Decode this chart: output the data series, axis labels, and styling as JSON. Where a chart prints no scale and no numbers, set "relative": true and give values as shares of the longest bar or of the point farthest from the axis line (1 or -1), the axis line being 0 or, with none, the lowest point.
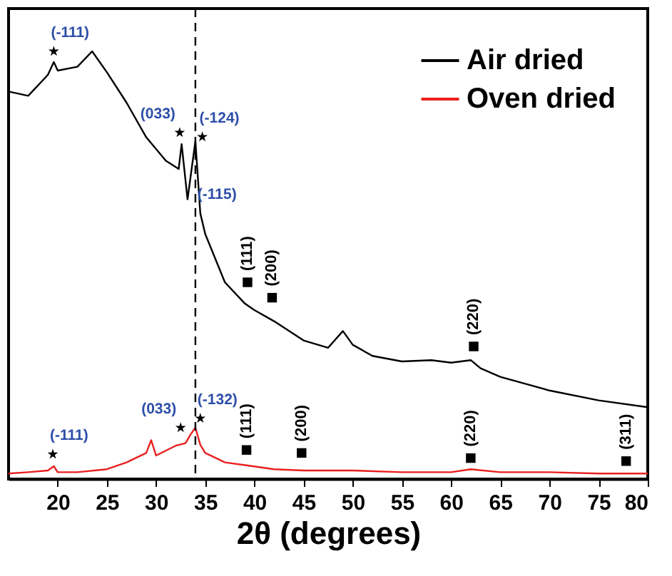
{
  "chart_data": {
    "type": "line",
    "relative": true,
    "xlabel": "2θ (degrees)",
    "xlim": [
      15,
      80
    ],
    "xticks": [
      20,
      25,
      30,
      35,
      40,
      45,
      50,
      55,
      60,
      65,
      70,
      75,
      80
    ],
    "grid": false,
    "legend": "top right",
    "marker": "none",
    "series": [
      {
        "name": "Air dried",
        "type": "line",
        "color": "#000000",
        "x": [
          15,
          17,
          19,
          19.6,
          20,
          22,
          23.5,
          25,
          27,
          29,
          31,
          32.3,
          32.6,
          33.2,
          34,
          34.5,
          35,
          37,
          39,
          40,
          42,
          45,
          47.5,
          49,
          50,
          52,
          55,
          58,
          60,
          62,
          63,
          65,
          70,
          75,
          80
        ],
        "values": [
          0.906,
          0.896,
          0.945,
          0.975,
          0.955,
          0.964,
          1.0,
          0.951,
          0.88,
          0.799,
          0.744,
          0.725,
          0.783,
          0.654,
          0.79,
          0.621,
          0.573,
          0.46,
          0.411,
          0.395,
          0.369,
          0.324,
          0.307,
          0.346,
          0.314,
          0.288,
          0.275,
          0.278,
          0.272,
          0.278,
          0.259,
          0.239,
          0.207,
          0.184,
          0.168
        ]
      },
      {
        "name": "Oven dried",
        "type": "line",
        "color": "#e8201f",
        "x": [
          15,
          17,
          19,
          19.6,
          20,
          22,
          25,
          27,
          29,
          29.5,
          30,
          32,
          33,
          33.5,
          34,
          34.5,
          35,
          37,
          39.2,
          42,
          45,
          50,
          55,
          60,
          62,
          65,
          70,
          75,
          80
        ],
        "values": [
          0.013,
          0.016,
          0.02,
          0.03,
          0.016,
          0.016,
          0.023,
          0.039,
          0.061,
          0.091,
          0.055,
          0.078,
          0.084,
          0.104,
          0.12,
          0.08,
          0.061,
          0.039,
          0.032,
          0.023,
          0.02,
          0.02,
          0.016,
          0.016,
          0.023,
          0.016,
          0.016,
          0.013,
          0.013
        ]
      },
      {
        "type": "scatter",
        "marker": "star",
        "color": "#000000",
        "x": [
          19.6,
          32.4,
          34.7,
          19.5,
          32.5,
          34.5
        ],
        "values": [
          1.0,
          0.81,
          0.8,
          0.058,
          0.12,
          0.142
        ]
      },
      {
        "type": "scatter",
        "marker": "square",
        "color": "#000000",
        "x": [
          39.3,
          41.8,
          62.3,
          39.2,
          44.8,
          62,
          77.8
        ],
        "values": [
          0.46,
          0.424,
          0.31,
          0.068,
          0.061,
          0.049,
          0.042
        ]
      }
    ],
    "ref_lines": [
      {
        "axis": "x",
        "value": 34,
        "line_style": "dashed",
        "color": "#000000"
      }
    ],
    "annotations": [
      {
        "text": "(-111)",
        "x": 19.6,
        "y": 1.0
      },
      {
        "text": "(033)",
        "x": 32.4,
        "y": 0.81
      },
      {
        "text": "(-124)",
        "x": 34.7,
        "y": 0.8
      },
      {
        "text": "(-115)",
        "x": 34.5,
        "y": 0.621
      },
      {
        "text": "(-111)",
        "x": 19.5,
        "y": 0.058
      },
      {
        "text": "(033)",
        "x": 32.5,
        "y": 0.12
      },
      {
        "text": "(-132)",
        "x": 34.5,
        "y": 0.142
      },
      {
        "text": "(111)",
        "x": 39.3,
        "y": 0.46
      },
      {
        "text": "(200)",
        "x": 41.8,
        "y": 0.424
      },
      {
        "text": "(220)",
        "x": 62.3,
        "y": 0.31
      },
      {
        "text": "(111)",
        "x": 39.2,
        "y": 0.068
      },
      {
        "text": "(200)",
        "x": 44.8,
        "y": 0.061
      },
      {
        "text": "(220)",
        "x": 62,
        "y": 0.049
      },
      {
        "text": "(311)",
        "x": 77.8,
        "y": 0.042
      }
    ]
  }
}
